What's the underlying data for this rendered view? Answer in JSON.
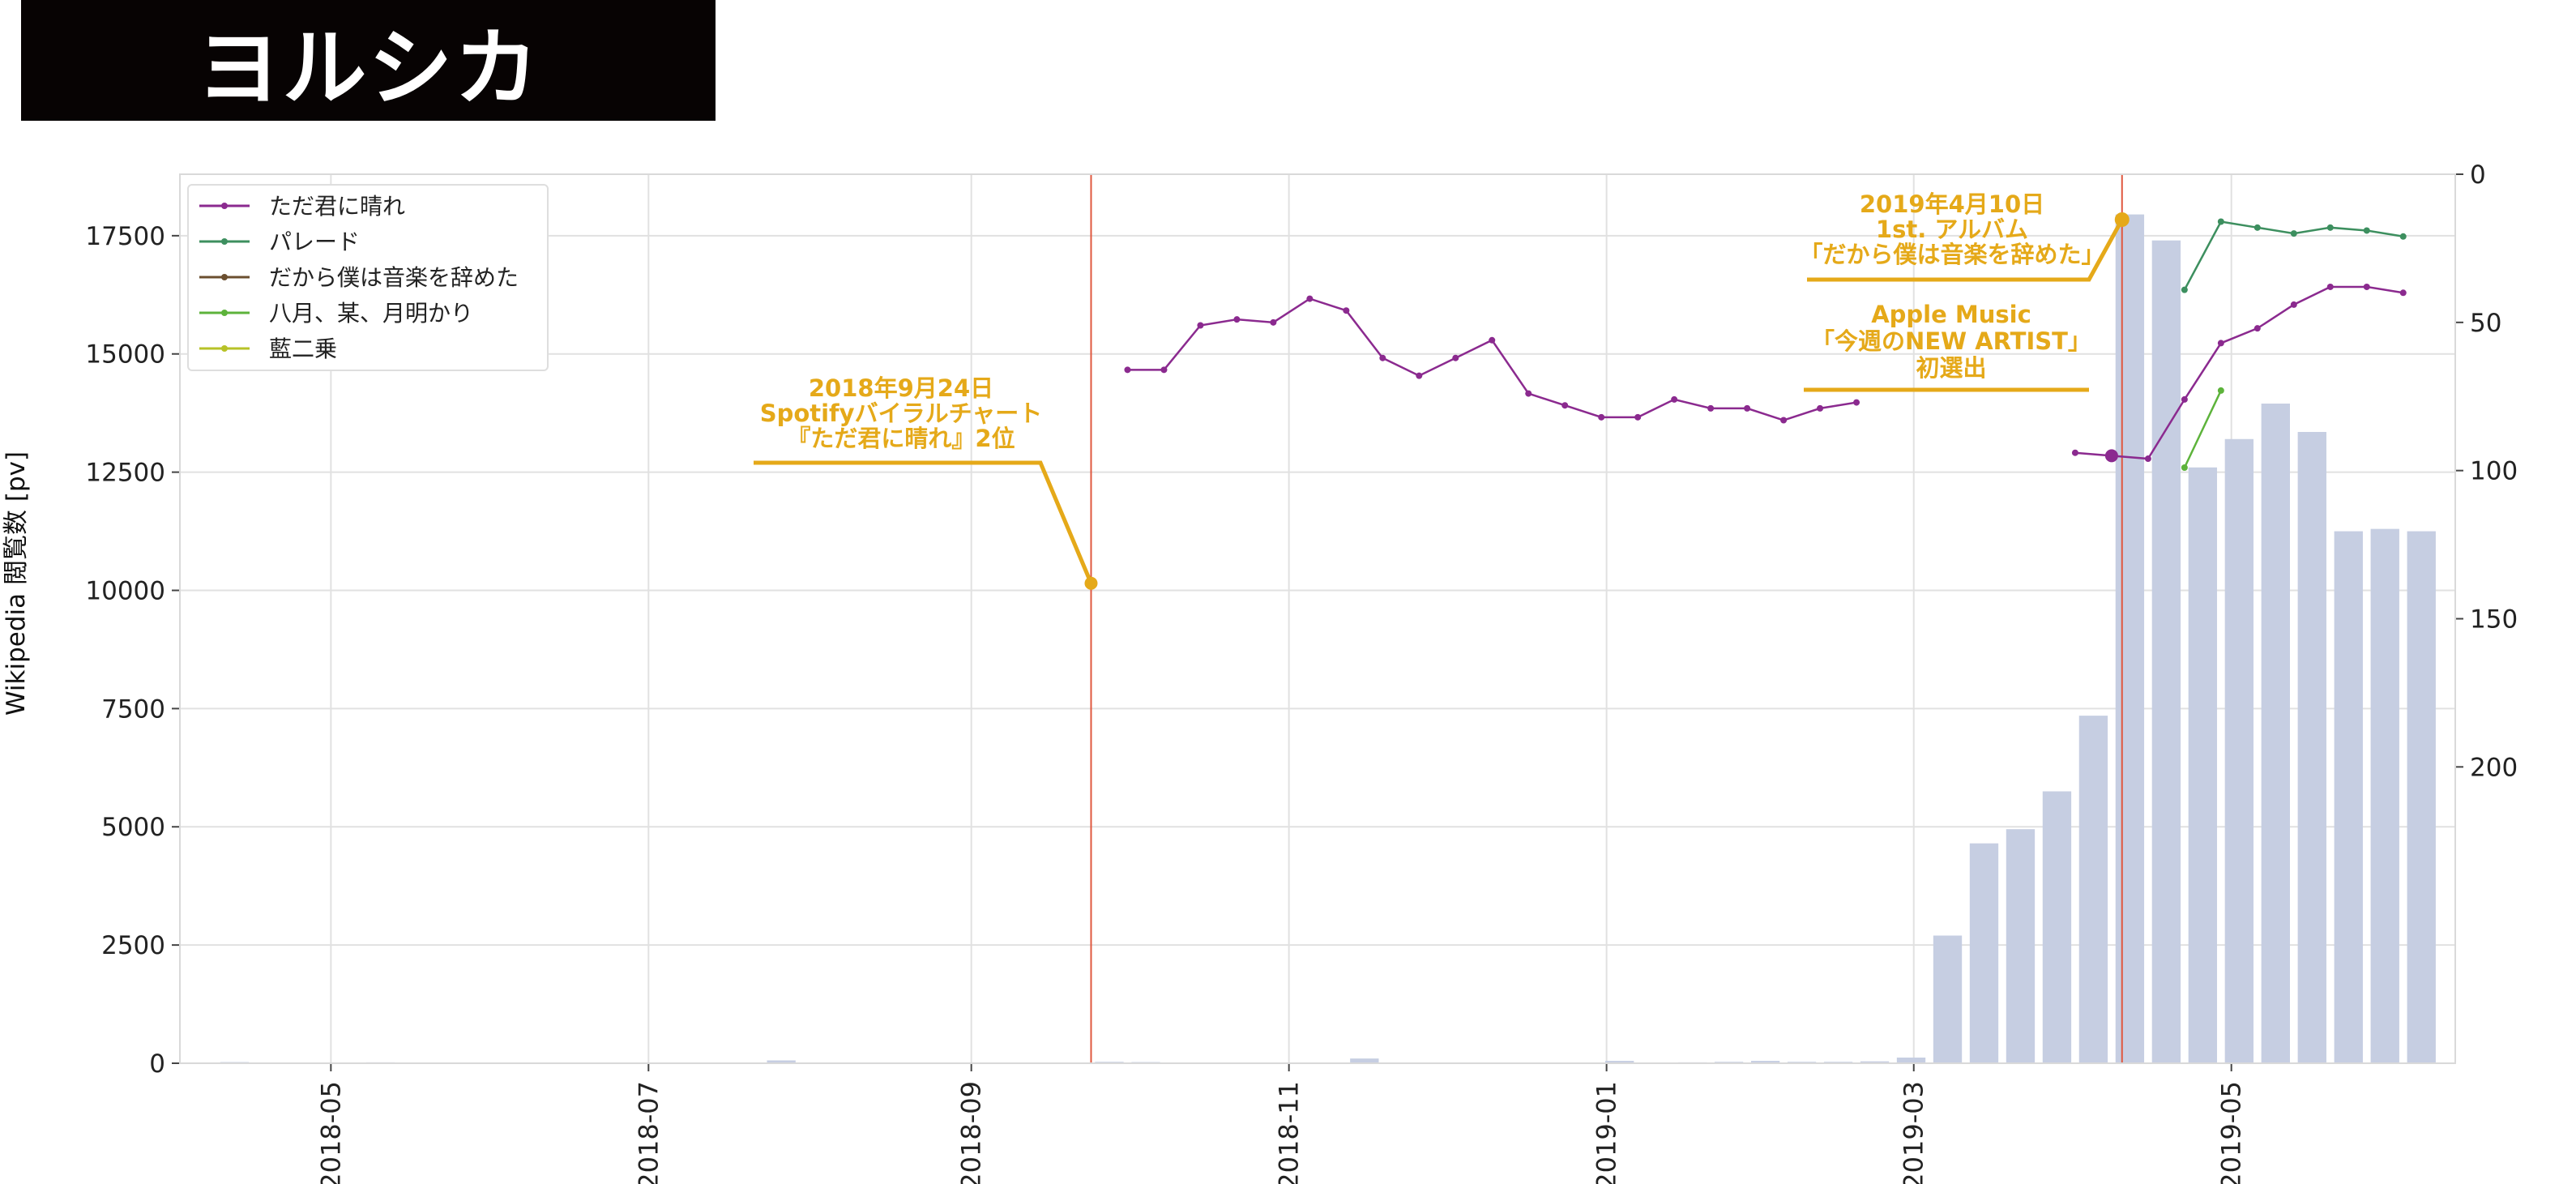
{
  "title": "ヨルシカ",
  "chart_data": {
    "type": "bar+line",
    "ylabel_left": "Wikipedia 閲覧数 [pv]",
    "ylim_left": [
      0,
      18800
    ],
    "ylim_right": [
      0,
      300
    ],
    "right_axis_inverted": true,
    "left_ticks": [
      0,
      2500,
      5000,
      7500,
      10000,
      12500,
      15000,
      17500
    ],
    "left_tick_labels": [
      "0",
      "2500",
      "5000",
      "7500",
      "10000",
      "12500",
      "15000",
      "17500"
    ],
    "right_ticks": [
      0,
      50,
      100,
      150,
      200
    ],
    "right_tick_labels": [
      "0",
      "50",
      "100",
      "150",
      "200"
    ],
    "xlim": [
      "2018-04-02",
      "2019-06-13"
    ],
    "x_ticks": [
      "2018-05-01",
      "2018-07-01",
      "2018-09-01",
      "2018-11-01",
      "2019-01-01",
      "2019-03-01",
      "2019-05-01"
    ],
    "x_tick_labels": [
      "2018-05",
      "2018-07",
      "2018-09",
      "2018-11",
      "2019-01",
      "2019-03",
      "2019-05"
    ],
    "grid": true,
    "legend_position": "top-left",
    "bars": {
      "color": "#c6cee2",
      "weeks": [
        "2018-04-09",
        "2018-05-07",
        "2018-05-14",
        "2018-07-23",
        "2018-08-27",
        "2018-09-24",
        "2018-10-01",
        "2018-11-12",
        "2018-12-31",
        "2019-01-14",
        "2019-01-21",
        "2019-01-28",
        "2019-02-04",
        "2019-02-11",
        "2019-02-18",
        "2019-02-25",
        "2019-03-04",
        "2019-03-11",
        "2019-03-18",
        "2019-03-25",
        "2019-04-01",
        "2019-04-08",
        "2019-04-15",
        "2019-04-22",
        "2019-04-29",
        "2019-05-06",
        "2019-05-13",
        "2019-05-20",
        "2019-05-27",
        "2019-06-03"
      ],
      "values": [
        25,
        20,
        15,
        60,
        15,
        30,
        25,
        100,
        50,
        20,
        30,
        50,
        30,
        30,
        40,
        120,
        2700,
        4650,
        4950,
        5750,
        7350,
        17950,
        17400,
        12600,
        13200,
        13950,
        13350,
        11250,
        11300,
        11250
      ]
    },
    "series": [
      {
        "name": "ただ君に晴れ",
        "color": "#8b2a8f",
        "x": [
          "2018-10-01",
          "2018-10-08",
          "2018-10-15",
          "2018-10-22",
          "2018-10-29",
          "2018-11-05",
          "2018-11-12",
          "2018-11-19",
          "2018-11-26",
          "2018-12-03",
          "2018-12-10",
          "2018-12-17",
          "2018-12-24",
          "2018-12-31",
          "2019-01-07",
          "2019-01-14",
          "2019-01-21",
          "2019-01-28",
          "2019-02-04",
          "2019-02-11",
          "2019-02-18",
          null,
          "2019-04-01",
          "2019-04-08",
          "2019-04-15",
          "2019-04-22",
          "2019-04-29",
          "2019-05-06",
          "2019-05-13",
          "2019-05-20",
          "2019-05-27",
          "2019-06-03"
        ],
        "y": [
          66,
          66,
          51,
          49,
          50,
          42,
          46,
          62,
          68,
          62,
          56,
          74,
          78,
          82,
          82,
          76,
          79,
          79,
          83,
          79,
          77,
          null,
          94,
          95,
          96,
          76,
          57,
          52,
          44,
          38,
          38,
          40
        ]
      },
      {
        "name": "パレード",
        "color": "#3d8f5f",
        "x": [
          "2019-04-22",
          "2019-04-29",
          "2019-05-06",
          "2019-05-13",
          "2019-05-20",
          "2019-05-27",
          "2019-06-03"
        ],
        "y": [
          39,
          16,
          18,
          20,
          18,
          19,
          21
        ]
      },
      {
        "name": "だから僕は音楽を辞めた",
        "color": "#6b4f2f",
        "x": [],
        "y": []
      },
      {
        "name": "八月、某、月明かり",
        "color": "#5db33b",
        "x": [
          "2019-04-22",
          "2019-04-29"
        ],
        "y": [
          99,
          73
        ]
      },
      {
        "name": "藍二乗",
        "color": "#b7c227",
        "x": [],
        "y": []
      }
    ],
    "vlines": [
      "2018-09-24",
      "2019-04-10"
    ],
    "vline_color": "#e0583f",
    "annotation_color": "#e5a919",
    "annotations": [
      {
        "date": "2018-09-24",
        "lines": [
          "2018年9月24日",
          "Spotifyバイラルチャート",
          "『ただ君に晴れ』2位"
        ]
      },
      {
        "date": "2019-04-10",
        "lines": [
          "2019年4月10日",
          "1st. アルバム",
          "「だから僕は音楽を辞めた」"
        ]
      },
      {
        "date": "2019-04-10",
        "lines": [
          "Apple Music",
          "「今週のNEW ARTIST」",
          "初選出"
        ]
      }
    ]
  }
}
